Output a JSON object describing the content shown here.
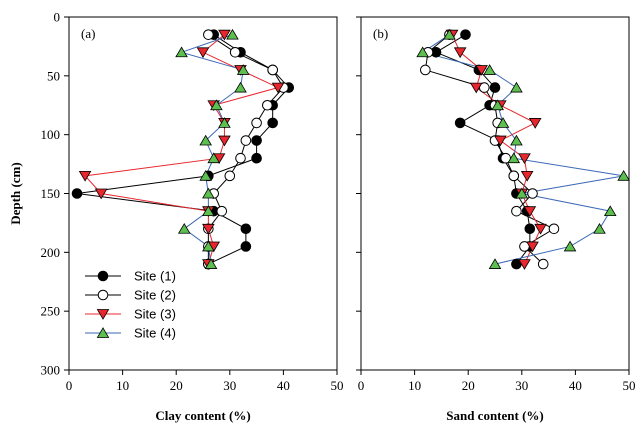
{
  "chart_data": [
    {
      "type": "line",
      "panel_label": "(a)",
      "title": "",
      "xlabel": "Clay content (%)",
      "ylabel": "Depth (cm)",
      "xlim": [
        0,
        50
      ],
      "ylim": [
        300,
        0
      ],
      "x_ticks": [
        "0",
        "10",
        "20",
        "30",
        "40",
        "50"
      ],
      "y_ticks": [
        "0",
        "50",
        "100",
        "150",
        "200",
        "250",
        "300"
      ],
      "y_inverted": true,
      "grid": false,
      "legend_position": "bottom-left",
      "series": [
        {
          "name": "Site (1)",
          "marker": "filled-circle",
          "color": "#000000",
          "points": [
            [
              27,
              15
            ],
            [
              32,
              30
            ],
            [
              38,
              45
            ],
            [
              41,
              60
            ],
            [
              38,
              75
            ],
            [
              38,
              90
            ],
            [
              35,
              105
            ],
            [
              35,
              120
            ],
            [
              26,
              135
            ],
            [
              1.5,
              150
            ],
            [
              27,
              165
            ],
            [
              33,
              180
            ],
            [
              33,
              195
            ],
            [
              26,
              210
            ]
          ]
        },
        {
          "name": "Site (2)",
          "marker": "open-circle",
          "color": "#000000",
          "points": [
            [
              26,
              15
            ],
            [
              31,
              30
            ],
            [
              38,
              45
            ],
            [
              40,
              60
            ],
            [
              37,
              75
            ],
            [
              35,
              90
            ],
            [
              33,
              105
            ],
            [
              32,
              120
            ],
            [
              30,
              135
            ],
            [
              27,
              150
            ],
            [
              28.5,
              165
            ],
            [
              26,
              180
            ],
            [
              26,
              195
            ],
            [
              26,
              210
            ]
          ]
        },
        {
          "name": "Site (3)",
          "marker": "down-triangle",
          "color": "#e8262d",
          "points": [
            [
              29,
              15
            ],
            [
              25,
              30
            ],
            [
              32,
              45
            ],
            [
              39,
              60
            ],
            [
              27,
              75
            ],
            [
              29,
              90
            ],
            [
              29,
              105
            ],
            [
              28,
              120
            ],
            [
              3,
              135
            ],
            [
              6,
              150
            ],
            [
              26,
              165
            ],
            [
              26,
              180
            ],
            [
              27,
              195
            ],
            [
              26,
              210
            ]
          ]
        },
        {
          "name": "Site (4)",
          "marker": "up-triangle",
          "color": "#3a68b5",
          "points": [
            [
              30.5,
              15
            ],
            [
              21,
              30
            ],
            [
              32.5,
              45
            ],
            [
              32,
              60
            ],
            [
              27.5,
              75
            ],
            [
              29,
              90
            ],
            [
              25.5,
              105
            ],
            [
              27,
              120
            ],
            [
              25.5,
              135
            ],
            [
              26,
              150
            ],
            [
              26,
              165
            ],
            [
              21.5,
              180
            ],
            [
              26,
              195
            ],
            [
              26.5,
              210
            ]
          ]
        }
      ]
    },
    {
      "type": "line",
      "panel_label": "(b)",
      "title": "",
      "xlabel": "Sand content (%)",
      "ylabel": "",
      "xlim": [
        0,
        50
      ],
      "ylim": [
        300,
        0
      ],
      "x_ticks": [
        "0",
        "10",
        "20",
        "30",
        "40",
        "50"
      ],
      "y_ticks": [],
      "y_inverted": true,
      "grid": false,
      "series": [
        {
          "name": "Site (1)",
          "marker": "filled-circle",
          "color": "#000000",
          "points": [
            [
              19.5,
              15
            ],
            [
              14,
              30
            ],
            [
              22,
              45
            ],
            [
              25,
              60
            ],
            [
              24,
              75
            ],
            [
              18.5,
              90
            ],
            [
              25.5,
              105
            ],
            [
              26.5,
              120
            ],
            [
              28.5,
              135
            ],
            [
              29,
              150
            ],
            [
              31,
              165
            ],
            [
              31.5,
              180
            ],
            [
              31.5,
              195
            ],
            [
              29,
              210
            ]
          ]
        },
        {
          "name": "Site (2)",
          "marker": "open-circle",
          "color": "#000000",
          "points": [
            [
              16.5,
              15
            ],
            [
              12.5,
              30
            ],
            [
              12,
              45
            ],
            [
              23,
              60
            ],
            [
              25,
              75
            ],
            [
              25.5,
              90
            ],
            [
              25,
              105
            ],
            [
              27,
              120
            ],
            [
              28.5,
              135
            ],
            [
              32,
              150
            ],
            [
              29,
              165
            ],
            [
              36,
              180
            ],
            [
              30.5,
              195
            ],
            [
              34,
              210
            ]
          ]
        },
        {
          "name": "Site (3)",
          "marker": "down-triangle",
          "color": "#e8262d",
          "points": [
            [
              17,
              15
            ],
            [
              18.5,
              30
            ],
            [
              22.5,
              45
            ],
            [
              21.5,
              60
            ],
            [
              26,
              75
            ],
            [
              32.5,
              90
            ],
            [
              26,
              105
            ],
            [
              30.5,
              120
            ],
            [
              31,
              135
            ],
            [
              30,
              150
            ],
            [
              31.5,
              165
            ],
            [
              33.5,
              180
            ],
            [
              32,
              195
            ],
            [
              30.5,
              210
            ]
          ]
        },
        {
          "name": "Site (4)",
          "marker": "up-triangle",
          "color": "#3a68b5",
          "points": [
            [
              16.5,
              15
            ],
            [
              11.5,
              30
            ],
            [
              24,
              45
            ],
            [
              29,
              60
            ],
            [
              25.5,
              75
            ],
            [
              26.5,
              90
            ],
            [
              29,
              105
            ],
            [
              28.5,
              120
            ],
            [
              49,
              135
            ],
            [
              30,
              150
            ],
            [
              46.5,
              165
            ],
            [
              44.5,
              180
            ],
            [
              39,
              195
            ],
            [
              25,
              210
            ]
          ]
        }
      ]
    }
  ]
}
